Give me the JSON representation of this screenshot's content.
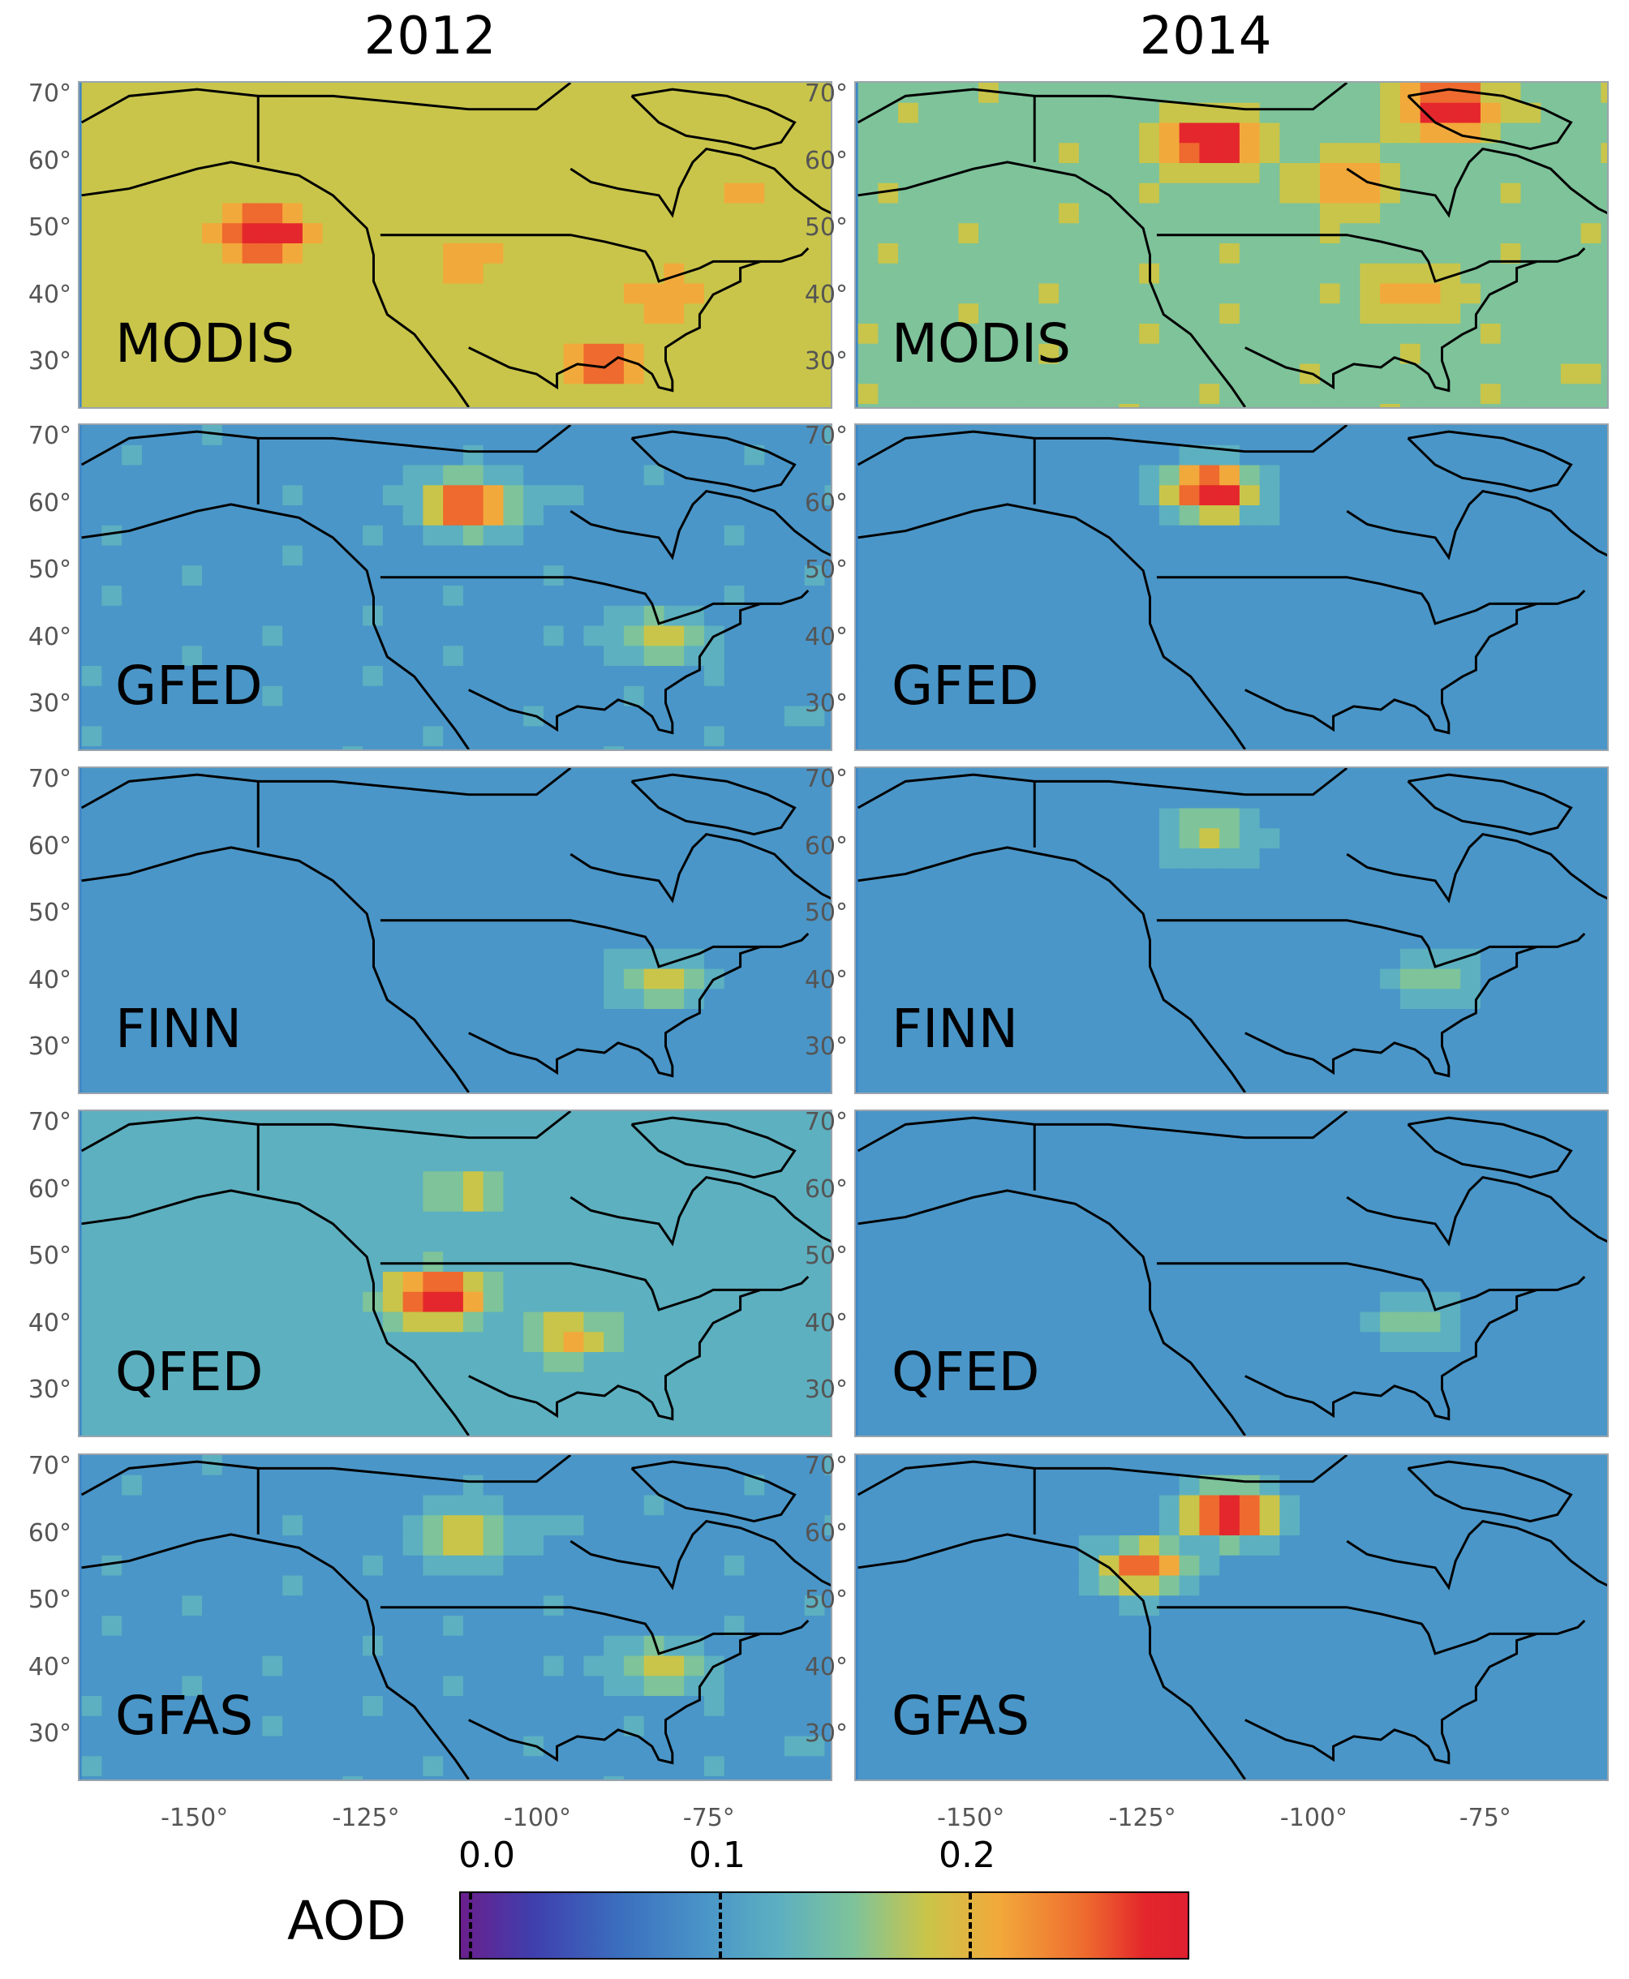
{
  "columns": [
    "2012",
    "2014"
  ],
  "rows": [
    "MODIS",
    "GFED",
    "FINN",
    "QFED",
    "GFAS"
  ],
  "lat_ticks": [
    "70°",
    "60°",
    "50°",
    "40°",
    "30°"
  ],
  "lon_ticks": [
    "-150°",
    "-125°",
    "-100°",
    "-75°"
  ],
  "colorbar": {
    "label": "AOD",
    "ticks": [
      "0.0",
      "0.1",
      "0.2"
    ],
    "colors": [
      "#6a1f8c",
      "#3f3fae",
      "#3b6fbe",
      "#4a96c8",
      "#5db0c0",
      "#7ec39a",
      "#c9c54a",
      "#f2a93b",
      "#ee6a2e",
      "#e4272c"
    ]
  },
  "map_data": {
    "variable": "AOD",
    "scale": [
      0.0,
      0.25
    ],
    "panels": [
      {
        "year": "2012",
        "source": "MODIS",
        "base": 0.15,
        "hotspots": [
          [
            -140,
            49,
            0.26
          ],
          [
            -90,
            30,
            0.22
          ],
          [
            -80,
            40,
            0.2
          ],
          [
            -110,
            45,
            0.19
          ],
          [
            -70,
            55,
            0.18
          ]
        ]
      },
      {
        "year": "2014",
        "source": "MODIS",
        "base": 0.14,
        "hotspots": [
          [
            -115,
            63,
            0.26
          ],
          [
            -80,
            68,
            0.25
          ],
          [
            -95,
            57,
            0.2
          ],
          [
            -85,
            40,
            0.19
          ]
        ]
      },
      {
        "year": "2012",
        "source": "GFED",
        "base": 0.09,
        "hotspots": [
          [
            -110,
            60,
            0.24
          ],
          [
            -82,
            40,
            0.16
          ]
        ]
      },
      {
        "year": "2014",
        "source": "GFED",
        "base": 0.085,
        "hotspots": [
          [
            -115,
            62,
            0.26
          ]
        ]
      },
      {
        "year": "2012",
        "source": "FINN",
        "base": 0.085,
        "hotspots": [
          [
            -82,
            40,
            0.16
          ]
        ]
      },
      {
        "year": "2014",
        "source": "FINN",
        "base": 0.085,
        "hotspots": [
          [
            -115,
            62,
            0.16
          ],
          [
            -82,
            40,
            0.14
          ]
        ]
      },
      {
        "year": "2012",
        "source": "QFED",
        "base": 0.1,
        "hotspots": [
          [
            -115,
            44,
            0.26
          ],
          [
            -95,
            38,
            0.18
          ],
          [
            -110,
            60,
            0.16
          ]
        ]
      },
      {
        "year": "2014",
        "source": "QFED",
        "base": 0.085,
        "hotspots": [
          [
            -85,
            40,
            0.14
          ]
        ]
      },
      {
        "year": "2012",
        "source": "GFAS",
        "base": 0.09,
        "hotspots": [
          [
            -110,
            60,
            0.17
          ],
          [
            -82,
            40,
            0.16
          ]
        ]
      },
      {
        "year": "2014",
        "source": "GFAS",
        "base": 0.085,
        "hotspots": [
          [
            -112,
            63,
            0.26
          ],
          [
            -125,
            55,
            0.22
          ]
        ]
      }
    ]
  }
}
